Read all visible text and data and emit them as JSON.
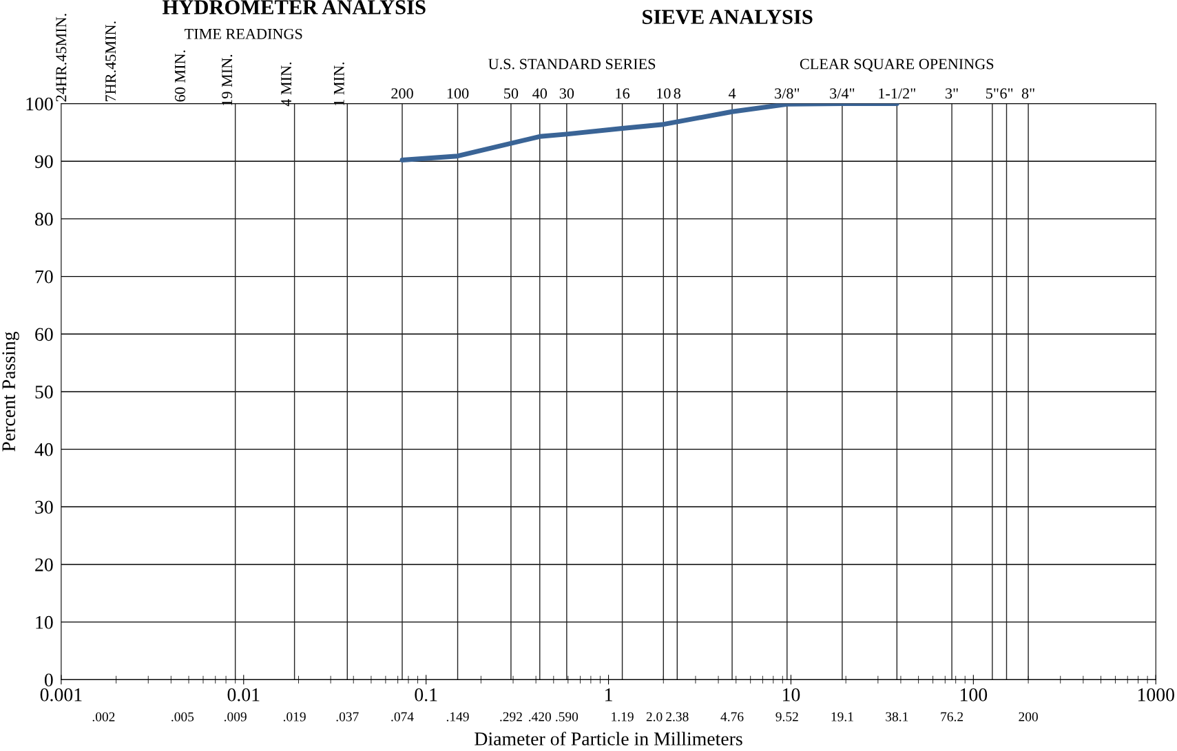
{
  "chart_data": {
    "type": "line",
    "xlabel": "Diameter of Particle in Millimeters",
    "ylabel": "Percent Passing",
    "annotations": [
      "HYDROMETER ANALYSIS",
      "SIEVE ANALYSIS",
      "TIME READINGS",
      "U.S. STANDARD SERIES",
      "CLEAR SQUARE OPENINGS",
      "24HR.45MIN.",
      "7HR.45MIN.",
      "60 MIN.",
      ".002",
      ".005",
      {
        "text": "19 MIN.",
        "x": 0.009,
        "y": 100
      },
      {
        "text": "4 MIN.",
        "x": 0.019,
        "y": 100
      },
      {
        "text": "1 MIN.",
        "x": 0.037,
        "y": 100
      },
      {
        "text": "200",
        "x": 0.074,
        "y": 100
      },
      {
        "text": "100",
        "x": 0.149,
        "y": 100
      },
      {
        "text": "50",
        "x": 0.292,
        "y": 100
      },
      {
        "text": "40",
        "x": 0.42,
        "y": 100
      },
      {
        "text": "30",
        "x": 0.59,
        "y": 100
      },
      {
        "text": "16",
        "x": 1.19,
        "y": 100
      },
      {
        "text": "10",
        "x": 2.0,
        "y": 100
      },
      {
        "text": "8",
        "x": 2.38,
        "y": 100
      },
      {
        "text": "4",
        "x": 4.76,
        "y": 100
      },
      {
        "text": "3/8\"",
        "x": 9.52,
        "y": 100
      },
      {
        "text": "3/4\"",
        "x": 19.1,
        "y": 100
      },
      {
        "text": "1-1/2\"",
        "x": 38.1,
        "y": 100
      },
      {
        "text": "3\"",
        "x": 76.2,
        "y": 100
      },
      {
        "text": "5\"",
        "x": 127,
        "y": 100
      },
      {
        "text": "6\"",
        "x": 152,
        "y": 100
      },
      {
        "text": "8\"",
        "x": 200,
        "y": 100
      }
    ],
    "log": "x",
    "xlim": [
      0.001,
      1000
    ],
    "xticks": [
      {
        "value": 0.001,
        "label": "0.001"
      },
      {
        "value": 0.01,
        "label": "0.01"
      },
      {
        "value": 0.1,
        "label": "0.1"
      },
      1,
      10,
      100,
      1000
    ],
    "ylim": [
      0,
      100
    ],
    "yticks": [
      0,
      10,
      20,
      30,
      40,
      50,
      60,
      70,
      80,
      90,
      100
    ],
    "grid": "y",
    "ref_lines": [
      {
        "axis": "x",
        "value": 0.009,
        "label": ".009"
      },
      {
        "axis": "x",
        "value": 0.019,
        "label": ".019"
      },
      {
        "axis": "x",
        "value": 0.037,
        "label": ".037"
      },
      {
        "axis": "x",
        "value": 0.074,
        "label": ".074"
      },
      {
        "axis": "x",
        "value": 0.149,
        "label": ".149"
      },
      {
        "axis": "x",
        "value": 0.292,
        "label": ".292"
      },
      {
        "axis": "x",
        "value": 0.42,
        "label": ".420"
      },
      {
        "axis": "x",
        "value": 0.59,
        "label": ".590"
      },
      {
        "axis": "x",
        "value": 1.19,
        "label": "1.19"
      },
      {
        "axis": "x",
        "value": 2.0,
        "label": "2.0"
      },
      {
        "axis": "x",
        "value": 2.38,
        "label": "2.38"
      },
      {
        "axis": "x",
        "value": 4.76,
        "label": "4.76"
      },
      {
        "axis": "x",
        "value": 9.52,
        "label": "9.52"
      },
      {
        "axis": "x",
        "value": 19.1,
        "label": "19.1"
      },
      {
        "axis": "x",
        "value": 38.1,
        "label": "38.1"
      },
      {
        "axis": "x",
        "value": 76.2,
        "label": "76.2"
      },
      {
        "axis": "x",
        "value": 127
      },
      {
        "axis": "x",
        "value": 152
      },
      {
        "axis": "x",
        "value": 200,
        "label": "200"
      }
    ],
    "marker": "none",
    "line_style": "solid",
    "series": [
      {
        "color": "#3a6496",
        "x": [
          0.074,
          0.149,
          0.42,
          0.59,
          1.19,
          2.0,
          4.76,
          9.52,
          19.1,
          38.1
        ],
        "values": [
          90.2,
          90.9,
          94.3,
          94.7,
          95.7,
          96.4,
          98.6,
          99.9,
          100,
          100
        ]
      }
    ]
  }
}
